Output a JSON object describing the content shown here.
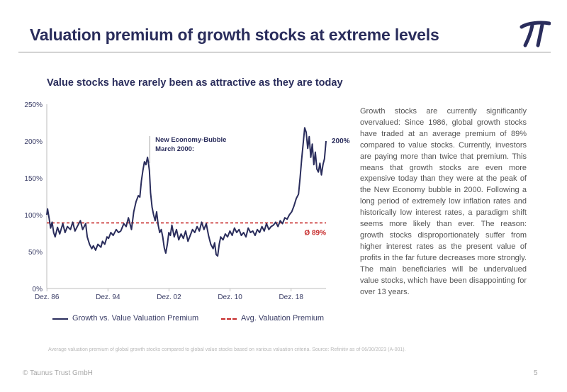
{
  "header": {
    "title": "Valuation premium of growth stocks at extreme levels",
    "logo_icon": "pi-logo-icon"
  },
  "chart_data": {
    "type": "line",
    "title": "Value stocks have rarely been as attractive as they are today",
    "xlabel": "",
    "ylabel": "",
    "x_range": [
      1986.9,
      2023.5
    ],
    "ylim": [
      0,
      250
    ],
    "y_ticks": [
      "0%",
      "50%",
      "100%",
      "150%",
      "200%",
      "250%"
    ],
    "x_ticks": [
      {
        "label": "Dez. 86",
        "x": 1986.92
      },
      {
        "label": "Dez. 94",
        "x": 1994.92
      },
      {
        "label": "Dez. 02",
        "x": 2002.92
      },
      {
        "label": "Dez. 10",
        "x": 2010.92
      },
      {
        "label": "Dez. 18",
        "x": 2018.92
      }
    ],
    "grid": false,
    "legend_position": "bottom",
    "series": [
      {
        "name": "Growth vs. Value Valuation Premium",
        "style": "solid",
        "color": "#2a2d5c",
        "x": [
          1986.9,
          1987.0,
          1987.2,
          1987.4,
          1987.6,
          1987.8,
          1988.0,
          1988.3,
          1988.6,
          1989.0,
          1989.3,
          1989.6,
          1990.0,
          1990.3,
          1990.6,
          1991.0,
          1991.3,
          1991.6,
          1992.0,
          1992.2,
          1992.5,
          1992.8,
          1993.0,
          1993.3,
          1993.6,
          1994.0,
          1994.2,
          1994.5,
          1994.8,
          1995.0,
          1995.3,
          1995.6,
          1996.0,
          1996.3,
          1996.6,
          1997.0,
          1997.3,
          1997.6,
          1998.0,
          1998.3,
          1998.6,
          1998.9,
          1999.1,
          1999.3,
          1999.5,
          1999.7,
          1999.9,
          2000.1,
          2000.2,
          2000.35,
          2000.5,
          2000.7,
          2000.9,
          2001.1,
          2001.3,
          2001.5,
          2001.7,
          2001.9,
          2002.1,
          2002.3,
          2002.5,
          2002.7,
          2002.9,
          2003.1,
          2003.3,
          2003.6,
          2003.9,
          2004.2,
          2004.5,
          2004.8,
          2005.1,
          2005.4,
          2005.7,
          2006.0,
          2006.3,
          2006.6,
          2006.9,
          2007.2,
          2007.5,
          2007.8,
          2008.1,
          2008.4,
          2008.7,
          2008.9,
          2009.1,
          2009.3,
          2009.5,
          2009.7,
          2010.0,
          2010.3,
          2010.6,
          2010.9,
          2011.2,
          2011.5,
          2011.8,
          2012.1,
          2012.4,
          2012.7,
          2013.0,
          2013.3,
          2013.6,
          2013.9,
          2014.2,
          2014.5,
          2014.8,
          2015.1,
          2015.4,
          2015.7,
          2016.0,
          2016.3,
          2016.6,
          2016.9,
          2017.2,
          2017.5,
          2017.8,
          2018.1,
          2018.4,
          2018.7,
          2019.0,
          2019.3,
          2019.6,
          2019.9,
          2020.1,
          2020.3,
          2020.5,
          2020.7,
          2020.9,
          2021.1,
          2021.3,
          2021.5,
          2021.7,
          2021.9,
          2022.1,
          2022.3,
          2022.5,
          2022.7,
          2022.9,
          2023.1,
          2023.3,
          2023.5
        ],
        "values": [
          100,
          108,
          96,
          82,
          90,
          76,
          70,
          83,
          74,
          88,
          76,
          84,
          80,
          90,
          78,
          86,
          92,
          80,
          88,
          70,
          60,
          54,
          58,
          52,
          60,
          56,
          64,
          60,
          70,
          68,
          76,
          72,
          80,
          76,
          78,
          88,
          84,
          96,
          80,
          104,
          118,
          126,
          124,
          146,
          160,
          172,
          168,
          178,
          172,
          160,
          130,
          110,
          100,
          92,
          104,
          86,
          76,
          80,
          70,
          55,
          48,
          60,
          76,
          72,
          86,
          70,
          80,
          66,
          74,
          68,
          78,
          64,
          72,
          80,
          76,
          84,
          78,
          90,
          80,
          88,
          72,
          60,
          54,
          62,
          46,
          44,
          60,
          70,
          66,
          74,
          70,
          78,
          72,
          82,
          76,
          80,
          72,
          76,
          70,
          82,
          76,
          78,
          72,
          80,
          76,
          84,
          78,
          88,
          80,
          84,
          86,
          90,
          84,
          92,
          88,
          96,
          94,
          100,
          104,
          112,
          122,
          128,
          150,
          175,
          196,
          218,
          212,
          190,
          206,
          178,
          196,
          168,
          185,
          162,
          158,
          170,
          154,
          168,
          176,
          200
        ]
      },
      {
        "name": "Avg. Valuation Premium",
        "style": "dashed",
        "color": "#c62828",
        "x": [
          1986.9,
          2023.5
        ],
        "values": [
          89,
          89
        ]
      }
    ],
    "annotations": [
      {
        "text_lines": [
          "New Economy-Bubble",
          "March 2000:"
        ],
        "x": 2000.2,
        "y": 178
      },
      {
        "text": "200%",
        "x": 2023.5,
        "y": 200
      },
      {
        "text": "Ø  89%",
        "x": 2023.5,
        "y": 89
      }
    ]
  },
  "body": {
    "paragraph": "Growth stocks are currently significantly overvalued: Since 1986, global growth stocks have traded at an average premium of 89% compared to value stocks. Currently, investors are paying more than twice that premium. This means that growth stocks are even more expensive today than they were at the peak of the New Economy bubble in 2000. Following a long period of extremely low inflation rates and historically low interest rates, a paradigm shift seems more likely than ever. The reason: growth stocks disproportionately suffer from higher interest rates as the present value of profits in the far future decreases more strongly. The main beneficiaries will be undervalued value stocks, which have been disappointing for over 13 years."
  },
  "footer": {
    "footnote": "Average valuation premium of global growth stocks compared to global value stocks based on various valuation criteria. Source: Refinitiv as of 06/30/2023 (A-001).",
    "copyright": "© Taunus Trust GmbH",
    "page_number": "5"
  }
}
